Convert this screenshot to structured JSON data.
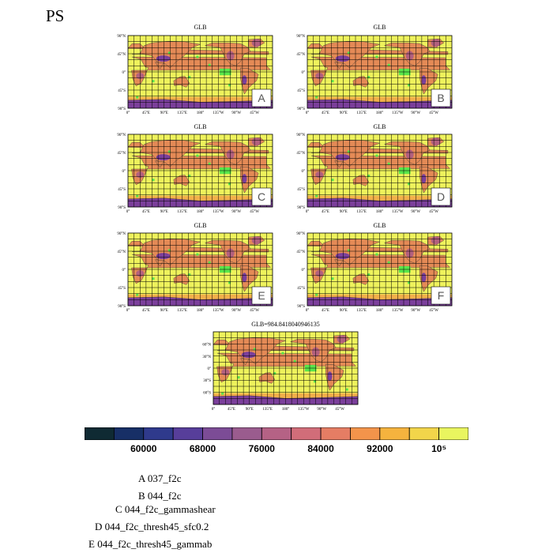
{
  "page": {
    "title": "PS"
  },
  "panels": [
    {
      "id": "A",
      "title": "GLB",
      "letter": "A"
    },
    {
      "id": "B",
      "title": "GLB",
      "letter": "B"
    },
    {
      "id": "C",
      "title": "GLB",
      "letter": "C"
    },
    {
      "id": "D",
      "title": "GLB",
      "letter": "D"
    },
    {
      "id": "E",
      "title": "GLB",
      "letter": "E"
    },
    {
      "id": "F",
      "title": "GLB",
      "letter": "F"
    },
    {
      "id": "G",
      "title": "GLB=984.8418040946135",
      "letter": ""
    }
  ],
  "axes": {
    "xticks": [
      "0°",
      "45°E",
      "90°E",
      "135°E",
      "180°",
      "135°W",
      "90°W",
      "45°W"
    ],
    "yticks_small": [
      "90°N",
      "45°N",
      "0°",
      "45°S",
      "90°S"
    ],
    "yticks_bottom": [
      "60°N",
      "30°N",
      "0°",
      "30°S",
      "60°S"
    ]
  },
  "colors": {
    "ocean": "#eef25c",
    "land": "#e48a56",
    "grid": "#000000",
    "high": "#58e64a",
    "low": "#7b3f9b",
    "mid": "#b2607e"
  },
  "colorbar": {
    "colors": [
      "#0f2a33",
      "#172f66",
      "#2f3a8c",
      "#573e9a",
      "#7c4c96",
      "#9a5c8e",
      "#b56285",
      "#d16d79",
      "#e57d64",
      "#f3944b",
      "#f5b33e",
      "#f2d54a",
      "#e9f55f"
    ],
    "labels": [
      "60000",
      "68000",
      "76000",
      "84000",
      "92000",
      "10⁵"
    ]
  },
  "chart_data": {
    "type": "heatmap",
    "title": "PS",
    "panel_titles": [
      "GLB",
      "GLB",
      "GLB",
      "GLB",
      "GLB",
      "GLB",
      "GLB=984.8418040946135"
    ],
    "colorbar_labels": [
      60000,
      68000,
      76000,
      84000,
      92000,
      100000
    ],
    "x_ticks": [
      "0°",
      "45°E",
      "90°E",
      "135°E",
      "180°",
      "135°W",
      "90°W",
      "45°W"
    ],
    "y_ticks": [
      "90°N",
      "45°N",
      "0°",
      "45°S",
      "90°S"
    ]
  },
  "legend": [
    "A  037_f2c",
    "B  044_f2c",
    "C  044_f2c_gammashear",
    "D  044_f2c_thresh45_sfc0.2",
    "E  044_f2c_thresh45_gammab"
  ]
}
